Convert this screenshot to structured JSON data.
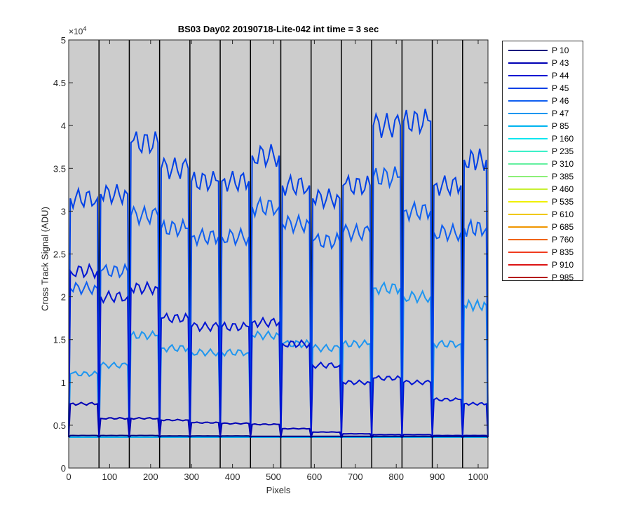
{
  "chart_data": {
    "type": "line",
    "title": "BS03 Day02 20190718-Lite-042 int time = 3 sec",
    "xlabel": "Pixels",
    "ylabel": "Cross Track Signal (ADU)",
    "xlim": [
      0,
      1024
    ],
    "ylim": [
      0,
      50000
    ],
    "y_exponent_label": "×10",
    "y_exponent": "4",
    "x_ticks": [
      0,
      100,
      200,
      300,
      400,
      500,
      600,
      700,
      800,
      900,
      1000
    ],
    "x_tick_labels": [
      "0",
      "100",
      "200",
      "300",
      "400",
      "500",
      "600",
      "700",
      "800",
      "900",
      "1000"
    ],
    "y_ticks": [
      0,
      5000,
      10000,
      15000,
      20000,
      25000,
      30000,
      35000,
      40000,
      45000,
      50000
    ],
    "y_tick_labels": [
      "0",
      "0.5",
      "1",
      "1.5",
      "2",
      "2.5",
      "3",
      "3.5",
      "4",
      "4.5",
      "5"
    ],
    "background_color": "#cccccc",
    "separator_color": "#000000",
    "separators": [
      74,
      148,
      222,
      296,
      370,
      444,
      518,
      592,
      666,
      740,
      814,
      888,
      962
    ],
    "baseline": 3600,
    "legend_position": "outside-right",
    "segments": [
      {
        "start": 0,
        "end": 74
      },
      {
        "start": 74,
        "end": 148
      },
      {
        "start": 148,
        "end": 222
      },
      {
        "start": 222,
        "end": 296
      },
      {
        "start": 296,
        "end": 370
      },
      {
        "start": 370,
        "end": 444
      },
      {
        "start": 444,
        "end": 518
      },
      {
        "start": 518,
        "end": 592
      },
      {
        "start": 592,
        "end": 666
      },
      {
        "start": 666,
        "end": 740
      },
      {
        "start": 740,
        "end": 814
      },
      {
        "start": 814,
        "end": 888
      },
      {
        "start": 888,
        "end": 962
      },
      {
        "start": 962,
        "end": 1024
      }
    ],
    "series": [
      {
        "name": "P 10",
        "color": "#00007f",
        "segment_levels": [
          3800,
          3800,
          3800,
          3750,
          3750,
          3750,
          3700,
          3700,
          3700,
          3700,
          3700,
          3700,
          3700,
          3700
        ]
      },
      {
        "name": "P 43",
        "color": "#0000b4",
        "segment_levels": [
          7500,
          5800,
          5800,
          5600,
          5300,
          5200,
          5100,
          4600,
          4200,
          4000,
          3900,
          3900,
          3800,
          3800
        ]
      },
      {
        "name": "P 44",
        "color": "#0014d2",
        "segment_levels": [
          23000,
          20000,
          21000,
          17500,
          16500,
          16500,
          17000,
          14500,
          12000,
          10000,
          10500,
          10000,
          8000,
          7500
        ]
      },
      {
        "name": "P 45",
        "color": "#0040e6",
        "segment_levels": [
          31500,
          32000,
          38000,
          35000,
          33500,
          33500,
          36500,
          33000,
          31500,
          33000,
          40000,
          40500,
          33000,
          36000
        ]
      },
      {
        "name": "P 46",
        "color": "#0f5ff0",
        "segment_levels": [
          21000,
          23000,
          29500,
          28000,
          27000,
          27000,
          30500,
          28500,
          26500,
          27500,
          34000,
          30000,
          27500,
          28000
        ]
      },
      {
        "name": "P 47",
        "color": "#1e96f0",
        "segment_levels": [
          11000,
          12000,
          15500,
          14000,
          13500,
          13500,
          15500,
          14500,
          14000,
          14500,
          21000,
          20000,
          14500,
          19000
        ]
      },
      {
        "name": "P 85",
        "color": "#00b4f0",
        "segment_levels": [
          3600,
          3600,
          3600,
          3600,
          3600,
          3600,
          3600,
          3600,
          3600,
          3600,
          3600,
          3600,
          3600,
          3600
        ]
      },
      {
        "name": "P 160",
        "color": "#00e6f0",
        "segment_levels": [
          3600,
          3600,
          3600,
          3600,
          3600,
          3600,
          3600,
          3600,
          3600,
          3600,
          3600,
          3600,
          3600,
          3600
        ]
      },
      {
        "name": "P 235",
        "color": "#3cf0c8",
        "segment_levels": [
          3600,
          3600,
          3600,
          3600,
          3600,
          3600,
          3600,
          3600,
          3600,
          3600,
          3600,
          3600,
          3600,
          3600
        ]
      },
      {
        "name": "P 310",
        "color": "#64f0a0",
        "segment_levels": [
          3600,
          3600,
          3600,
          3600,
          3600,
          3600,
          3600,
          3600,
          3600,
          3600,
          3600,
          3600,
          3600,
          3600
        ]
      },
      {
        "name": "P 385",
        "color": "#8cf078",
        "segment_levels": [
          3600,
          3600,
          3600,
          3600,
          3600,
          3600,
          3600,
          3600,
          3600,
          3600,
          3600,
          3600,
          3600,
          3600
        ]
      },
      {
        "name": "P 460",
        "color": "#c8f032",
        "segment_levels": [
          3600,
          3600,
          3600,
          3600,
          3600,
          3600,
          3600,
          3600,
          3600,
          3600,
          3600,
          3600,
          3600,
          3600
        ]
      },
      {
        "name": "P 535",
        "color": "#f0f000",
        "segment_levels": [
          3600,
          3600,
          3600,
          3600,
          3600,
          3600,
          3600,
          3600,
          3600,
          3600,
          3600,
          3600,
          3600,
          3600
        ]
      },
      {
        "name": "P 610",
        "color": "#f0c800",
        "segment_levels": [
          3600,
          3600,
          3600,
          3600,
          3600,
          3600,
          3600,
          3600,
          3600,
          3600,
          3600,
          3600,
          3600,
          3600
        ]
      },
      {
        "name": "P 685",
        "color": "#f09600",
        "segment_levels": [
          3600,
          3600,
          3600,
          3600,
          3600,
          3600,
          3600,
          3600,
          3600,
          3600,
          3600,
          3600,
          3600,
          3600
        ]
      },
      {
        "name": "P 760",
        "color": "#f06400",
        "segment_levels": [
          3600,
          3600,
          3600,
          3600,
          3600,
          3600,
          3600,
          3600,
          3600,
          3600,
          3600,
          3600,
          3600,
          3600
        ]
      },
      {
        "name": "P 835",
        "color": "#f03c1e",
        "segment_levels": [
          3600,
          3600,
          3600,
          3600,
          3600,
          3600,
          3600,
          3600,
          3600,
          3600,
          3600,
          3600,
          3600,
          3600
        ]
      },
      {
        "name": "P 910",
        "color": "#dc1414",
        "segment_levels": [
          3600,
          3600,
          3600,
          3600,
          3600,
          3600,
          3600,
          3600,
          3600,
          3600,
          3600,
          3600,
          3600,
          3600
        ]
      },
      {
        "name": "P 985",
        "color": "#b40000",
        "segment_levels": [
          3600,
          3600,
          3600,
          3600,
          3600,
          3600,
          3600,
          3600,
          3600,
          3600,
          3600,
          3600,
          3600,
          3600
        ]
      }
    ]
  }
}
